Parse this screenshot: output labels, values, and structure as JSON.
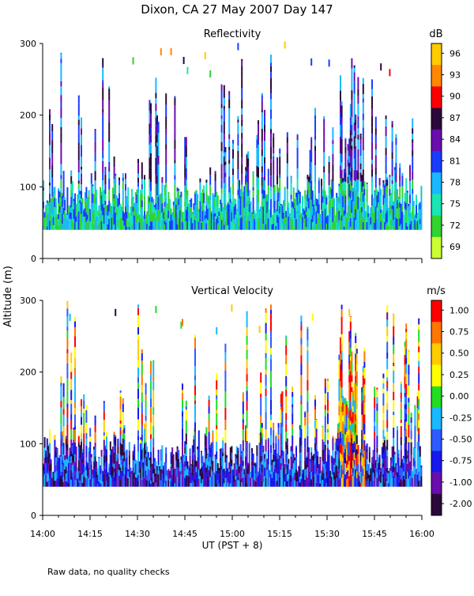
{
  "chart_data": {
    "type": "heatmap",
    "title": "Dixon, CA 27 May 2007  Day 147",
    "ylabel": "Altitude (m)",
    "xlabel": "UT  (PST + 8)",
    "footnote": "Raw data, no quality checks",
    "x_ticks": [
      "14:00",
      "14:15",
      "14:30",
      "14:45",
      "15:00",
      "15:15",
      "15:30",
      "15:45",
      "16:00"
    ],
    "x_range_minutes": [
      0,
      120
    ],
    "panels": [
      {
        "title": "Reflectivity",
        "y_ticks": [
          0,
          100,
          200,
          300
        ],
        "ylim": [
          0,
          300
        ],
        "data_altitude_range": [
          40,
          300
        ],
        "colorbar": {
          "unit": "dB",
          "labels": [
            "96",
            "93",
            "90",
            "87",
            "84",
            "81",
            "78",
            "75",
            "72",
            "69"
          ],
          "colors": [
            "#ffcc00",
            "#ff8800",
            "#ff0000",
            "#2a0a3a",
            "#6a0dad",
            "#1a3cff",
            "#19b8ff",
            "#19e6b4",
            "#32d232",
            "#ccff33"
          ],
          "range": [
            69,
            97.5
          ]
        }
      },
      {
        "title": "Vertical Velocity",
        "y_ticks": [
          0,
          100,
          200,
          300
        ],
        "ylim": [
          0,
          300
        ],
        "data_altitude_range": [
          40,
          300
        ],
        "colorbar": {
          "unit": "m/s",
          "labels": [
            "1.00",
            "0.75",
            "0.50",
            "0.25",
            "0.00",
            "-0.25",
            "-0.50",
            "-0.75",
            "-1.00",
            "-2.00"
          ],
          "colors": [
            "#ff0000",
            "#ff7700",
            "#ffcc00",
            "#ffff00",
            "#22dd22",
            "#19b8ff",
            "#2e5bff",
            "#1818ee",
            "#6a0dad",
            "#2a0a3a"
          ],
          "range": [
            -2.0,
            1.25
          ]
        }
      }
    ]
  }
}
